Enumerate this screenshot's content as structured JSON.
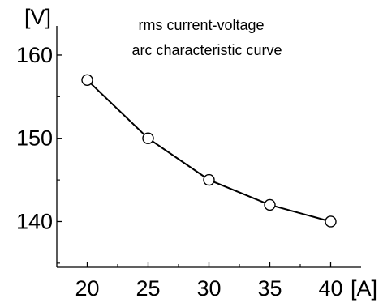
{
  "chart_data": {
    "type": "line",
    "title_lines": [
      "rms current-voltage",
      "arc characteristic curve"
    ],
    "x_unit": "[A]",
    "y_unit": "[V]",
    "x": [
      20,
      25,
      30,
      35,
      40
    ],
    "series": [
      {
        "values": [
          157,
          150,
          145,
          142,
          140
        ]
      }
    ],
    "x_ticks": [
      20,
      25,
      30,
      35,
      40
    ],
    "y_ticks": [
      140,
      150,
      160
    ],
    "xlim": [
      17.5,
      42.5
    ],
    "ylim": [
      134.5,
      163.5
    ],
    "marker": "open-circle",
    "grid": false,
    "line_color": "#000000"
  }
}
